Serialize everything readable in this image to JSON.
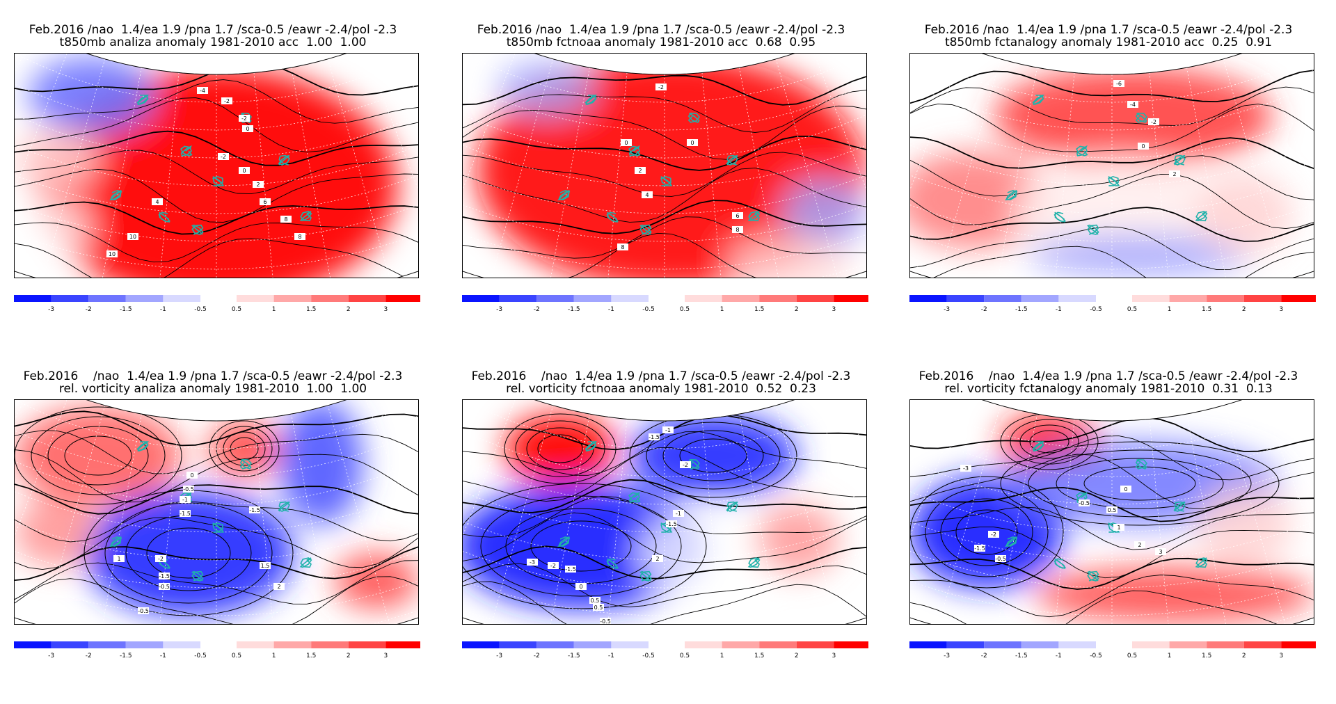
{
  "panels": [
    {
      "title_line1": "Feb.2016 /nao  1.4/ea 1.9 /pna 1.7 /sca-0.5 /eawr -2.4/pol -2.3",
      "title_line2": "t850mb analiza anomaly 1981-2010 acc  1.00  1.00",
      "field": "temperature",
      "labels": [
        "-4",
        "-2",
        "-2",
        "0",
        "-2",
        "0",
        "2",
        "4",
        "6",
        "8",
        "8",
        "10",
        "10"
      ]
    },
    {
      "title_line1": "Feb.2016 /nao  1.4/ea 1.9 /pna 1.7 /sca-0.5 /eawr -2.4/pol -2.3",
      "title_line2": "t850mb fctnoaa anomaly 1981-2010 acc  0.68  0.95",
      "field": "temperature",
      "labels": [
        "-2",
        "0",
        "0",
        "2",
        "4",
        "6",
        "8",
        "8"
      ]
    },
    {
      "title_line1": "Feb.2016 /nao  1.4/ea 1.9 /pna 1.7 /sca-0.5 /eawr -2.4/pol -2.3",
      "title_line2": "t850mb fctanalogy anomaly 1981-2010 acc  0.25  0.91",
      "field": "temperature",
      "labels": [
        "-6",
        "-4",
        "-2",
        "0",
        "2"
      ]
    },
    {
      "title_line1": "Feb.2016    /nao  1.4/ea 1.9 /pna 1.7 /sca-0.5 /eawr -2.4/pol -2.3",
      "title_line2": "rel. vorticity analiza anomaly 1981-2010  1.00  1.00",
      "field": "vorticity",
      "labels": [
        "0",
        "-0.5",
        "-1",
        "-1.5",
        "-1.5",
        "-2",
        "-1.5",
        "-0.5",
        "-0.5",
        "1",
        "1.5",
        "2"
      ]
    },
    {
      "title_line1": "Feb.2016    /nao  1.4/ea 1.9 /pna 1.7 /sca-0.5 /eawr -2.4/pol -2.3",
      "title_line2": "rel. vorticity fctnoaa anomaly 1981-2010  0.52  0.23",
      "field": "vorticity",
      "labels": [
        "-1.5",
        "-1",
        "-2",
        "-1",
        "-1.5",
        "-3",
        "-2",
        "-1.5",
        "0",
        "0.5",
        "2",
        "0.5",
        "-0.5"
      ]
    },
    {
      "title_line1": "Feb.2016    /nao  1.4/ea 1.9 /pna 1.7 /sca-0.5 /eawr -2.4/pol -2.3",
      "title_line2": "rel. vorticity fctanalogy anomaly 1981-2010  0.31  0.13",
      "field": "vorticity",
      "labels": [
        "-3",
        "-2",
        "-1.5",
        "-0.5",
        "0",
        "-0.5",
        "0.5",
        "1",
        "2",
        "3"
      ]
    }
  ],
  "colorbar": {
    "negative_colors": [
      "#0a14ff",
      "#3a44ff",
      "#6e74ff",
      "#a2a6ff",
      "#d8d9ff"
    ],
    "positive_colors": [
      "#ffdcdc",
      "#ffa8a8",
      "#ff7a7a",
      "#ff4444",
      "#ff0000"
    ],
    "negative_labels": [
      "-3",
      "-2",
      "-1.5",
      "-1",
      "-0.5"
    ],
    "positive_labels": [
      "0.5",
      "1",
      "1.5",
      "2",
      "3"
    ]
  },
  "colors": {
    "coast": "#20b2aa",
    "contour": "#000000",
    "grid": "#ffffff"
  }
}
